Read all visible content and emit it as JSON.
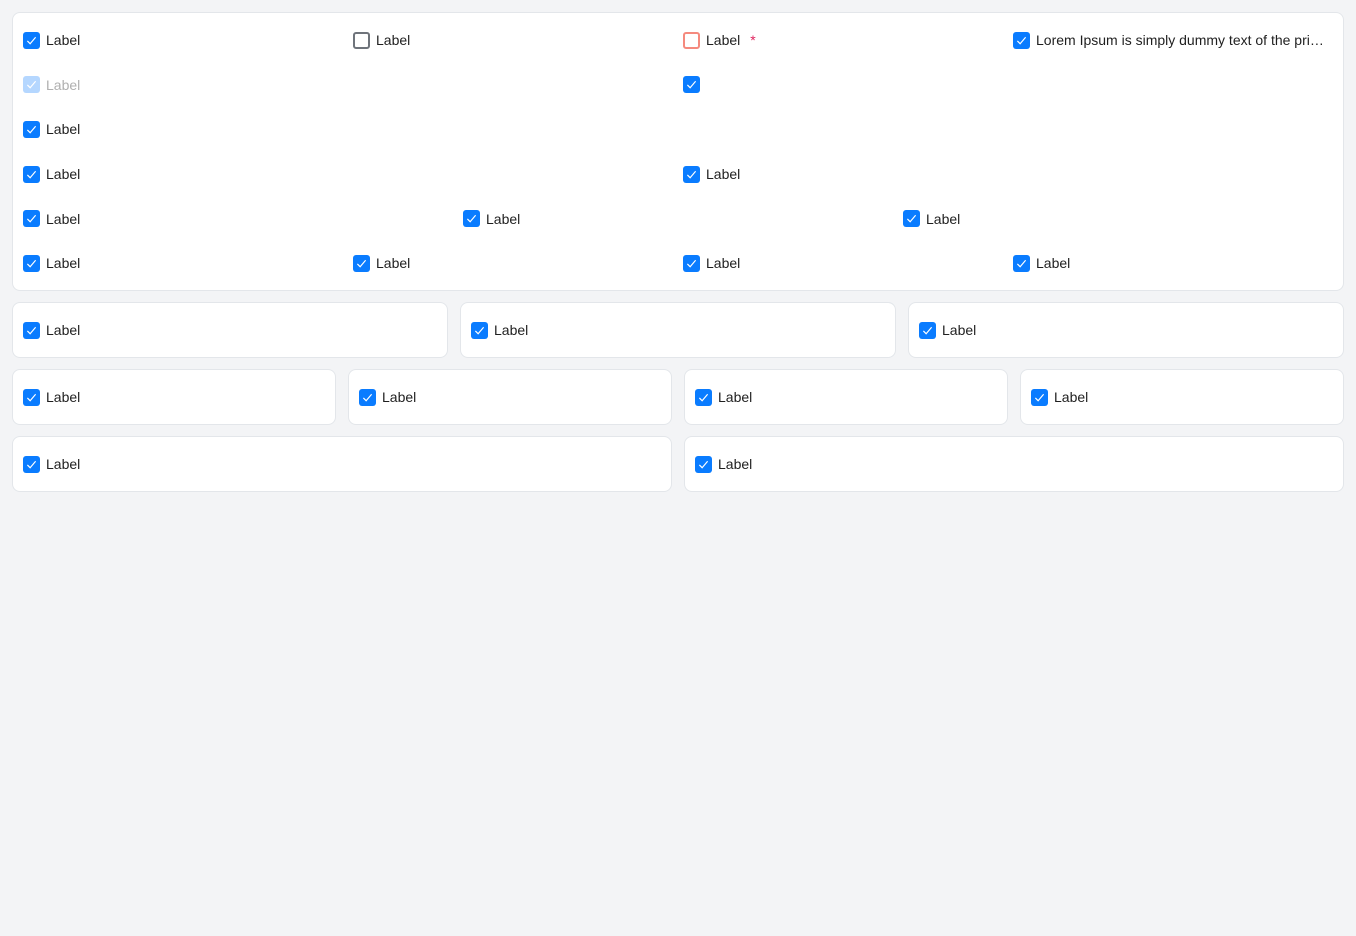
{
  "accent": "#0a7cff",
  "main": {
    "row1": [
      {
        "label": "Label",
        "state": "checked"
      },
      {
        "label": "Label",
        "state": "unchecked"
      },
      {
        "label": "Label",
        "state": "error",
        "required": "*"
      },
      {
        "label": "Lorem Ipsum is simply dummy text of the printing and typesetting industry",
        "state": "checked"
      }
    ],
    "row2": [
      {
        "label": "Label",
        "state": "disabled-checked"
      },
      {
        "label": "",
        "state": "checked"
      }
    ],
    "row3": [
      {
        "label": "Label",
        "state": "checked"
      }
    ],
    "row4": [
      {
        "label": "Label",
        "state": "checked"
      },
      {
        "label": "Label",
        "state": "checked"
      }
    ],
    "row5": [
      {
        "label": "Label"
      },
      {
        "label": "Label"
      },
      {
        "label": "Label"
      }
    ],
    "row6": [
      {
        "label": "Label"
      },
      {
        "label": "Label"
      },
      {
        "label": "Label"
      },
      {
        "label": "Label"
      }
    ]
  },
  "cards3": [
    {
      "label": "Label"
    },
    {
      "label": "Label"
    },
    {
      "label": "Label"
    }
  ],
  "cards4": [
    {
      "label": "Label"
    },
    {
      "label": "Label"
    },
    {
      "label": "Label"
    },
    {
      "label": "Label"
    }
  ],
  "cards2": [
    {
      "label": "Label"
    },
    {
      "label": "Label"
    }
  ]
}
